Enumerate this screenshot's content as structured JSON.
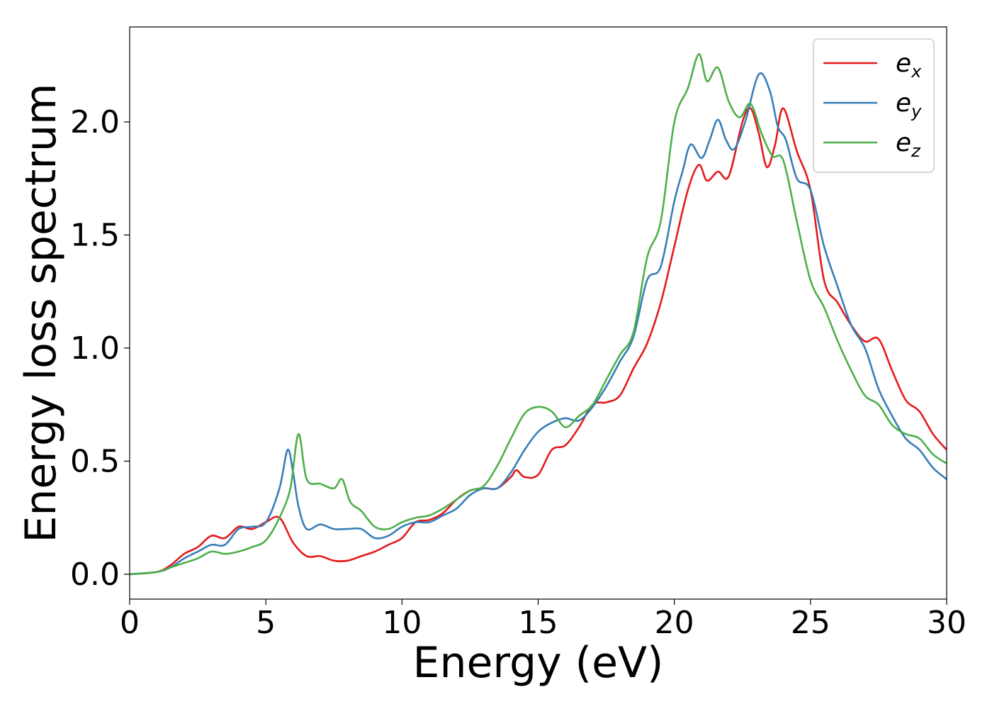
{
  "chart_data": {
    "type": "line",
    "xlabel": "Energy (eV)",
    "ylabel": "Energy loss spectrum",
    "xlim": [
      0,
      30
    ],
    "ylim": [
      -0.11,
      2.42
    ],
    "xticks": [
      0,
      5,
      10,
      15,
      20,
      25,
      30
    ],
    "xtick_labels": [
      "0",
      "5",
      "10",
      "15",
      "20",
      "25",
      "30"
    ],
    "yticks": [
      0.0,
      0.5,
      1.0,
      1.5,
      2.0
    ],
    "ytick_labels": [
      "0.0",
      "0.5",
      "1.0",
      "1.5",
      "2.0"
    ],
    "grid": false,
    "legend_position": "top-right",
    "series": [
      {
        "name": "e",
        "subscript": "x",
        "color": "#e41a1c",
        "x": [
          0,
          1,
          1.5,
          2,
          2.5,
          3,
          3.5,
          4,
          4.5,
          5,
          5.5,
          6,
          6.5,
          7,
          7.5,
          8,
          8.5,
          9,
          9.5,
          10,
          10.5,
          11,
          11.5,
          12,
          12.5,
          13,
          13.5,
          14,
          14.2,
          14.5,
          15,
          15.5,
          16,
          16.5,
          17,
          17.5,
          18,
          18.5,
          19,
          19.5,
          20,
          20.5,
          20.9,
          21.2,
          21.6,
          22,
          22.5,
          22.8,
          23.1,
          23.4,
          23.7,
          24,
          24.5,
          25,
          25.5,
          26,
          26.5,
          27,
          27.5,
          28,
          28.5,
          29,
          29.5,
          30
        ],
        "y": [
          0,
          0.01,
          0.04,
          0.09,
          0.12,
          0.17,
          0.16,
          0.21,
          0.2,
          0.23,
          0.25,
          0.14,
          0.08,
          0.08,
          0.06,
          0.06,
          0.08,
          0.1,
          0.13,
          0.16,
          0.23,
          0.24,
          0.27,
          0.33,
          0.37,
          0.38,
          0.38,
          0.43,
          0.46,
          0.43,
          0.44,
          0.55,
          0.57,
          0.65,
          0.75,
          0.76,
          0.79,
          0.91,
          1.02,
          1.2,
          1.45,
          1.7,
          1.81,
          1.74,
          1.78,
          1.76,
          2.0,
          2.06,
          1.95,
          1.8,
          1.9,
          2.06,
          1.87,
          1.7,
          1.3,
          1.2,
          1.1,
          1.03,
          1.04,
          0.9,
          0.77,
          0.72,
          0.62,
          0.55
        ]
      },
      {
        "name": "e",
        "subscript": "y",
        "color": "#377eb8",
        "x": [
          0,
          1,
          1.5,
          2,
          2.5,
          3,
          3.5,
          4,
          4.5,
          5,
          5.5,
          5.8,
          6,
          6.2,
          6.5,
          7,
          7.5,
          8,
          8.5,
          9,
          9.5,
          10,
          10.5,
          11,
          11.5,
          12,
          12.5,
          13,
          13.5,
          14,
          14.5,
          15,
          15.5,
          16,
          16.5,
          17,
          17.5,
          18,
          18.5,
          19,
          19.5,
          20,
          20.3,
          20.6,
          21,
          21.3,
          21.6,
          21.9,
          22.2,
          22.6,
          23.1,
          23.5,
          23.8,
          24.1,
          24.5,
          25,
          25.5,
          26,
          26.5,
          27,
          27.5,
          28,
          28.5,
          29,
          29.5,
          30
        ],
        "y": [
          0,
          0.01,
          0.03,
          0.07,
          0.1,
          0.13,
          0.13,
          0.2,
          0.21,
          0.23,
          0.38,
          0.55,
          0.45,
          0.3,
          0.2,
          0.22,
          0.2,
          0.2,
          0.2,
          0.16,
          0.17,
          0.21,
          0.23,
          0.23,
          0.26,
          0.29,
          0.35,
          0.38,
          0.38,
          0.45,
          0.55,
          0.63,
          0.67,
          0.69,
          0.68,
          0.74,
          0.83,
          0.94,
          1.05,
          1.3,
          1.36,
          1.65,
          1.78,
          1.9,
          1.84,
          1.92,
          2.01,
          1.92,
          1.88,
          2.0,
          2.21,
          2.14,
          1.98,
          1.92,
          1.75,
          1.7,
          1.45,
          1.27,
          1.1,
          1.0,
          0.82,
          0.7,
          0.6,
          0.55,
          0.47,
          0.42
        ]
      },
      {
        "name": "e",
        "subscript": "z",
        "color": "#4daf4a",
        "x": [
          0,
          1,
          1.5,
          2,
          2.5,
          3,
          3.5,
          4,
          4.5,
          5,
          5.5,
          5.9,
          6.2,
          6.5,
          7,
          7.5,
          7.8,
          8.1,
          8.5,
          9,
          9.5,
          10,
          10.5,
          11,
          11.5,
          12,
          12.5,
          13,
          13.5,
          14,
          14.5,
          15,
          15.5,
          16,
          16.5,
          17,
          17.5,
          18,
          18.5,
          19,
          19.5,
          20,
          20.5,
          20.9,
          21.2,
          21.6,
          22,
          22.4,
          22.8,
          23.2,
          23.6,
          24,
          24.5,
          25,
          25.5,
          26,
          26.5,
          27,
          27.5,
          28,
          28.5,
          29,
          29.5,
          30
        ],
        "y": [
          0,
          0.01,
          0.03,
          0.05,
          0.07,
          0.1,
          0.09,
          0.1,
          0.12,
          0.15,
          0.25,
          0.38,
          0.62,
          0.42,
          0.4,
          0.38,
          0.42,
          0.32,
          0.28,
          0.21,
          0.2,
          0.23,
          0.25,
          0.26,
          0.29,
          0.33,
          0.37,
          0.39,
          0.48,
          0.6,
          0.71,
          0.74,
          0.72,
          0.65,
          0.7,
          0.75,
          0.86,
          0.97,
          1.07,
          1.4,
          1.56,
          2.0,
          2.15,
          2.3,
          2.18,
          2.24,
          2.09,
          2.02,
          2.08,
          1.95,
          1.85,
          1.83,
          1.56,
          1.3,
          1.18,
          1.03,
          0.9,
          0.79,
          0.75,
          0.66,
          0.62,
          0.6,
          0.53,
          0.49
        ]
      }
    ]
  }
}
